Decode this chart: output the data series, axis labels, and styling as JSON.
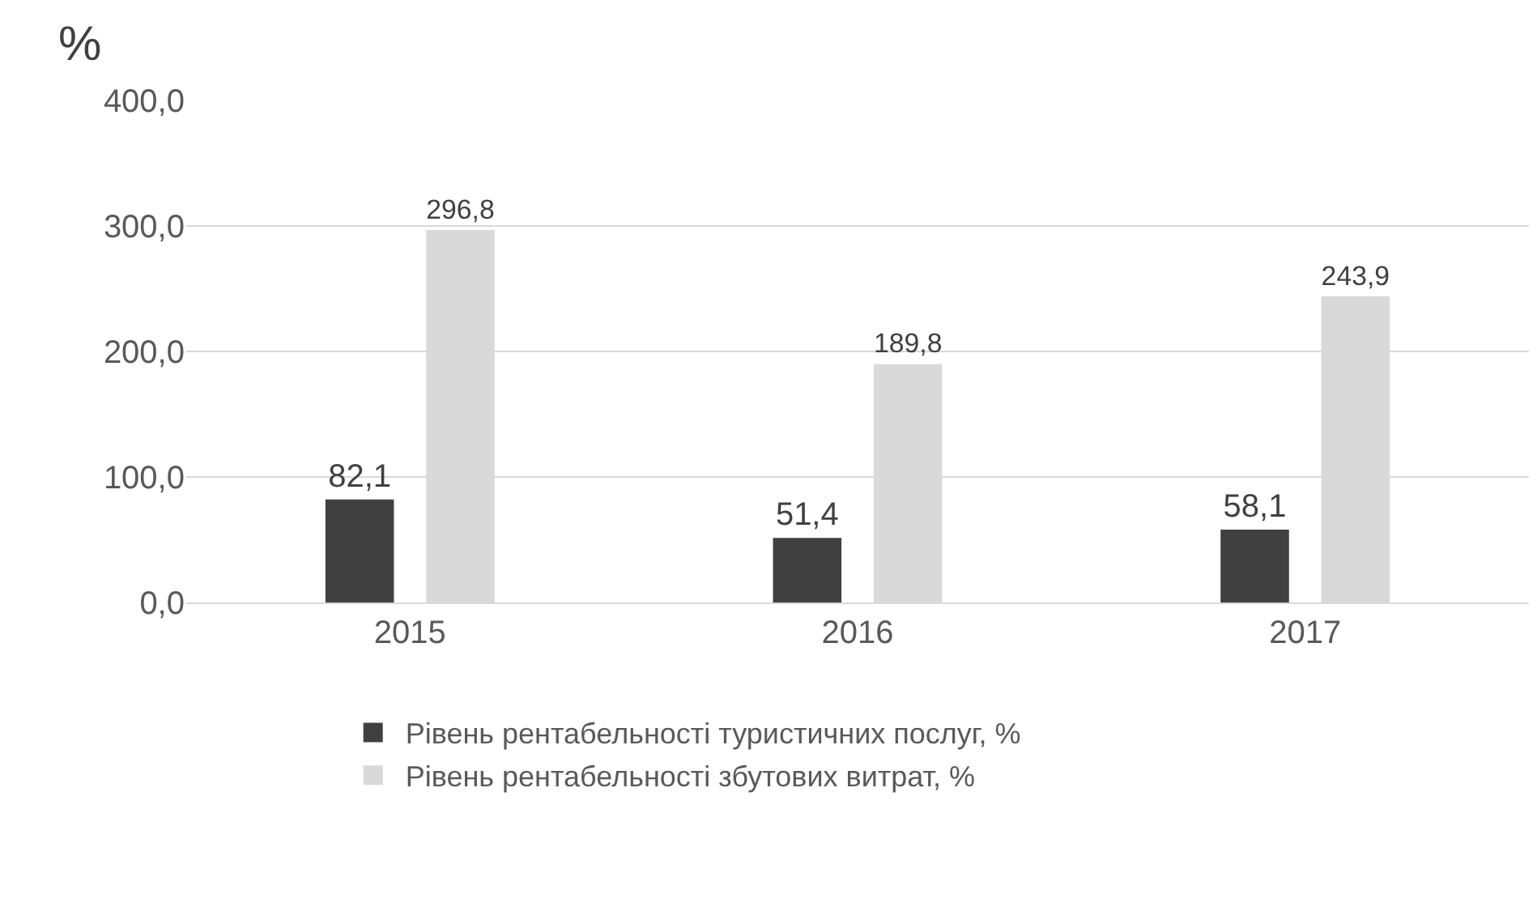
{
  "chart_data": {
    "type": "bar",
    "ylabel": "%",
    "categories": [
      "2015",
      "2016",
      "2017"
    ],
    "series": [
      {
        "name": "Рівень рентабельності туристичних послуг, %",
        "color": "#404040",
        "values": [
          82.1,
          51.4,
          58.1
        ],
        "value_labels": [
          "82,1",
          "51,4",
          "58,1"
        ]
      },
      {
        "name": "Рівень рентабельності збутових витрат, %",
        "color": "#d9d9d9",
        "values": [
          296.8,
          189.8,
          243.9
        ],
        "value_labels": [
          "296,8",
          "189,8",
          "243,9"
        ]
      }
    ],
    "ylim": [
      0,
      400
    ],
    "yticks": [
      {
        "value": 0,
        "label": "0,0"
      },
      {
        "value": 100,
        "label": "100,0"
      },
      {
        "value": 200,
        "label": "200,0"
      },
      {
        "value": 300,
        "label": "300,0"
      },
      {
        "value": 400,
        "label": "400,0"
      }
    ],
    "grid": "y",
    "legend": "bottom"
  }
}
